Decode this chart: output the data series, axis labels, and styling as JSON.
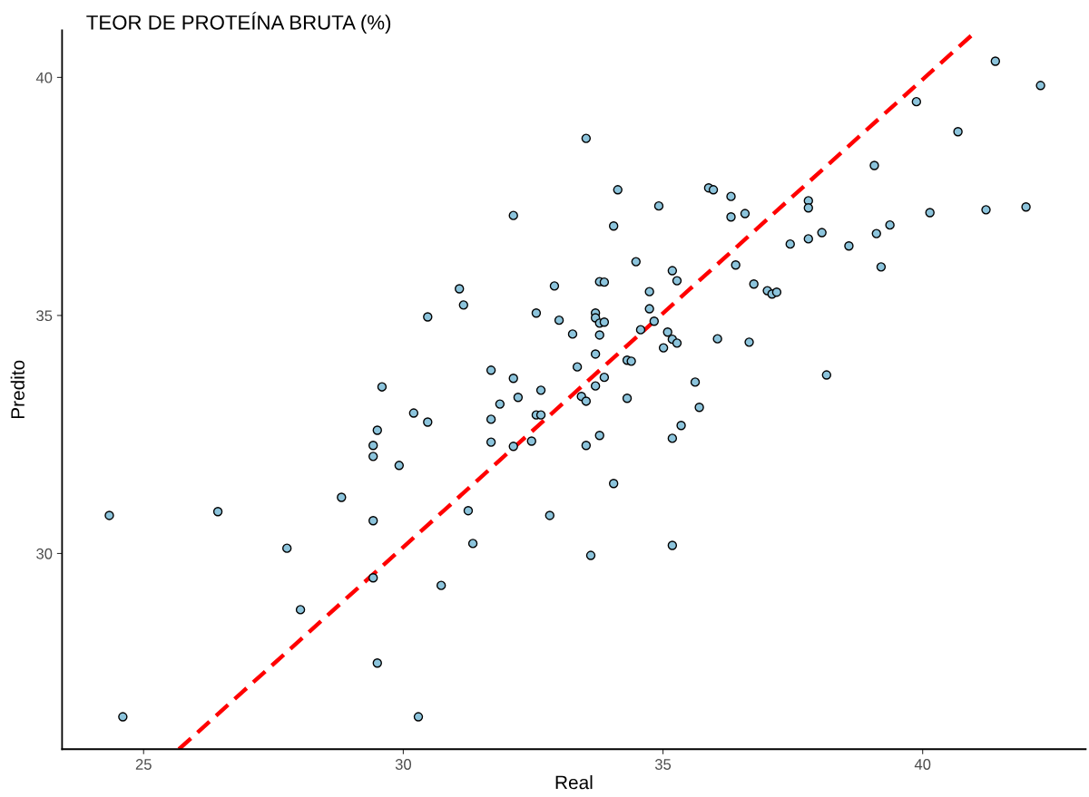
{
  "chart_data": {
    "type": "scatter",
    "title": "TEOR DE PROTEÍNA BRUTA (%)",
    "xlabel": "Real",
    "ylabel": "Predito",
    "xlim": [
      23.43,
      43.14
    ],
    "ylim": [
      25.89,
      40.99
    ],
    "xticks": [
      25,
      30,
      35,
      40
    ],
    "yticks": [
      30,
      35,
      40
    ],
    "grid": false,
    "series": [
      {
        "marker": "circle",
        "color": "#8cc4dc",
        "x": [
          24.34,
          24.6,
          26.43,
          27.76,
          28.02,
          28.81,
          29.42,
          29.42,
          29.42,
          29.42,
          29.5,
          29.5,
          29.59,
          29.92,
          30.2,
          30.47,
          30.47,
          30.29,
          30.73,
          31.08,
          31.16,
          31.25,
          31.34,
          31.69,
          31.69,
          31.69,
          31.86,
          32.12,
          32.12,
          32.12,
          32.21,
          32.47,
          32.56,
          32.56,
          32.65,
          32.65,
          32.82,
          32.91,
          33.0,
          33.26,
          33.35,
          33.43,
          33.52,
          33.52,
          33.52,
          33.61,
          33.7,
          33.7,
          33.7,
          33.7,
          33.78,
          33.78,
          33.78,
          33.78,
          33.87,
          33.87,
          33.87,
          34.05,
          34.05,
          34.13,
          34.31,
          34.31,
          34.39,
          34.48,
          34.57,
          34.74,
          34.74,
          34.83,
          34.92,
          35.01,
          35.09,
          35.18,
          35.18,
          35.18,
          35.18,
          35.27,
          35.27,
          35.35,
          35.62,
          35.7,
          35.88,
          35.97,
          36.05,
          36.31,
          36.31,
          36.4,
          36.58,
          36.66,
          36.75,
          37.01,
          37.1,
          37.19,
          37.45,
          37.8,
          37.8,
          37.8,
          38.06,
          38.15,
          38.58,
          39.07,
          39.11,
          39.2,
          39.37,
          39.88,
          40.14,
          40.68,
          41.22,
          41.4,
          41.99,
          42.27
        ],
        "values": [
          30.8,
          26.57,
          30.88,
          30.11,
          28.82,
          31.18,
          30.69,
          32.04,
          32.27,
          29.49,
          32.59,
          27.7,
          33.5,
          31.85,
          32.95,
          34.97,
          32.76,
          26.57,
          29.33,
          35.56,
          35.22,
          30.9,
          30.21,
          33.85,
          32.82,
          32.34,
          33.14,
          37.1,
          33.68,
          32.25,
          33.28,
          32.36,
          35.05,
          32.91,
          33.43,
          32.91,
          30.8,
          35.62,
          34.9,
          34.61,
          33.92,
          33.3,
          33.2,
          32.27,
          38.72,
          29.96,
          35.05,
          34.95,
          34.19,
          33.52,
          34.59,
          34.84,
          32.48,
          35.71,
          35.7,
          34.86,
          33.7,
          36.88,
          31.47,
          37.64,
          34.06,
          33.26,
          34.04,
          36.13,
          34.7,
          35.5,
          35.14,
          34.88,
          37.3,
          34.32,
          34.65,
          35.94,
          34.5,
          32.42,
          30.17,
          35.73,
          34.42,
          32.69,
          33.6,
          33.07,
          37.68,
          37.64,
          34.51,
          37.5,
          37.07,
          36.06,
          37.14,
          34.44,
          35.66,
          35.52,
          35.45,
          35.49,
          36.5,
          37.41,
          37.26,
          36.61,
          36.74,
          33.75,
          36.46,
          38.15,
          36.72,
          36.02,
          36.9,
          39.49,
          37.16,
          38.86,
          37.22,
          40.34,
          37.28,
          39.83
        ]
      },
      {
        "type": "line",
        "color": "#ff0000",
        "line_style": "dashed",
        "marker": "none",
        "x": [
          25.68,
          41.05
        ],
        "values": [
          25.89,
          40.99
        ]
      }
    ]
  }
}
